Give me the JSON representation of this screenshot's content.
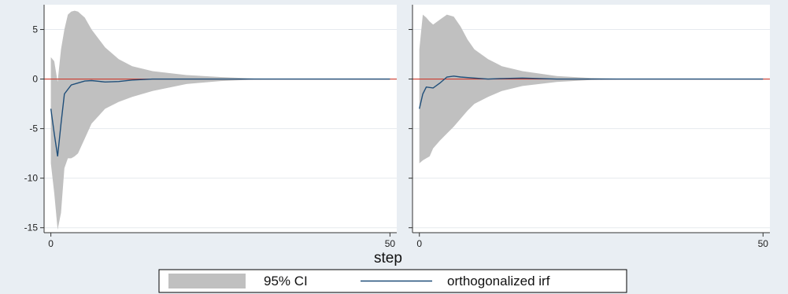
{
  "chart_data": {
    "type": "area",
    "xlabel": "step",
    "legend": {
      "placement": "bottom",
      "entries": [
        "95% CI",
        "orthogonalized irf"
      ]
    },
    "colors": {
      "ci_fill": "#c0c0c0",
      "irf_line": "#1f4e79",
      "zero_line": "#cc3b2e",
      "grid": "#e6eaee",
      "panel_bg": "#ffffff",
      "outer_bg": "#e9eef3"
    },
    "ylim": [
      -15.5,
      7.5
    ],
    "yticks": [
      5,
      0,
      -5,
      -10,
      -15
    ],
    "xlim": [
      -1,
      51
    ],
    "xticks": [
      0,
      50
    ],
    "grid": true,
    "panels": [
      {
        "series": [
          {
            "name": "95% CI",
            "x": [
              0,
              0.5,
              1,
              1.5,
              2,
              2.5,
              3,
              3.5,
              4,
              5,
              6,
              8,
              10,
              12,
              15,
              20,
              25,
              30,
              40,
              50
            ],
            "upper": [
              2.2,
              1.8,
              -0.3,
              3.0,
              5.0,
              6.5,
              6.8,
              6.9,
              6.8,
              6.2,
              5.0,
              3.2,
              2.0,
              1.3,
              0.8,
              0.4,
              0.2,
              0.05,
              0.0,
              0.0
            ],
            "lower": [
              -8.5,
              -11.5,
              -15.2,
              -13.5,
              -9.0,
              -8.0,
              -8.0,
              -7.8,
              -7.5,
              -6.0,
              -4.5,
              -3.0,
              -2.3,
              -1.8,
              -1.2,
              -0.5,
              -0.2,
              -0.05,
              0.0,
              0.0
            ]
          },
          {
            "name": "orthogonalized irf",
            "x": [
              0,
              0.5,
              1,
              1.5,
              2,
              3,
              4,
              5,
              6,
              8,
              10,
              12,
              15,
              20,
              25,
              30,
              40,
              50
            ],
            "y": [
              -3.0,
              -5.5,
              -7.8,
              -4.5,
              -1.5,
              -0.6,
              -0.4,
              -0.2,
              -0.15,
              -0.3,
              -0.25,
              -0.1,
              0.0,
              0.0,
              0.0,
              0.0,
              0.0,
              0.0
            ]
          }
        ]
      },
      {
        "series": [
          {
            "name": "95% CI",
            "x": [
              0,
              0.5,
              1,
              1.5,
              2,
              3,
              4,
              5,
              6,
              7,
              8,
              10,
              12,
              15,
              20,
              25,
              30,
              40,
              50
            ],
            "upper": [
              3.0,
              6.5,
              6.2,
              5.8,
              5.5,
              6.0,
              6.5,
              6.3,
              5.3,
              4.0,
              3.0,
              2.0,
              1.3,
              0.8,
              0.3,
              0.1,
              0.03,
              0.0,
              0.0
            ],
            "lower": [
              -8.5,
              -8.2,
              -8.0,
              -7.8,
              -7.0,
              -6.2,
              -5.5,
              -4.8,
              -4.0,
              -3.2,
              -2.5,
              -1.8,
              -1.2,
              -0.7,
              -0.3,
              -0.1,
              -0.03,
              0.0,
              0.0
            ]
          },
          {
            "name": "orthogonalized irf",
            "x": [
              0,
              0.5,
              1,
              2,
              3,
              4,
              5,
              6,
              8,
              10,
              12,
              15,
              20,
              25,
              30,
              40,
              50
            ],
            "y": [
              -3.0,
              -1.5,
              -0.8,
              -0.9,
              -0.4,
              0.2,
              0.3,
              0.2,
              0.1,
              0.0,
              0.05,
              0.1,
              0.0,
              0.0,
              0.0,
              0.0,
              0.0
            ]
          }
        ]
      }
    ]
  }
}
